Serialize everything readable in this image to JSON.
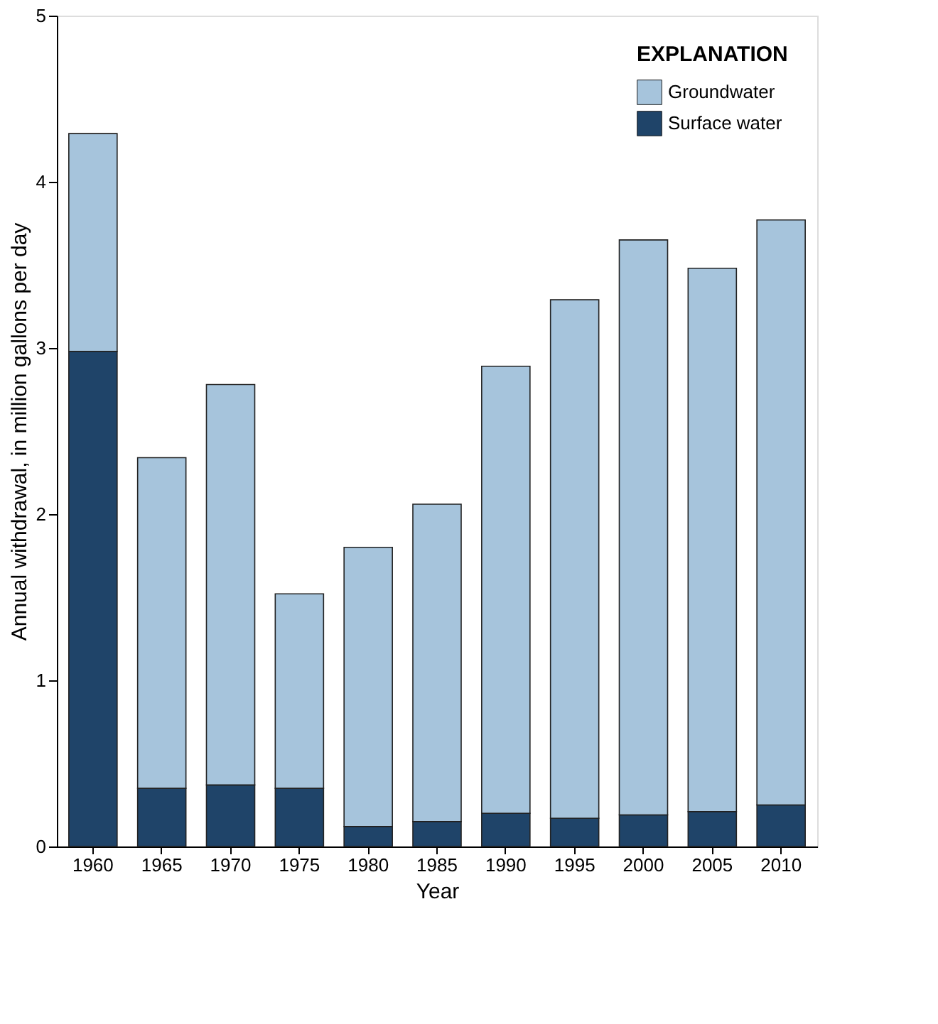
{
  "chart_data": {
    "type": "bar",
    "stacked": true,
    "xlabel": "Year",
    "ylabel": "Annual withdrawal, in million gallons per day",
    "legend_title": "EXPLANATION",
    "legend": "top right",
    "grid": false,
    "categories": [
      "1960",
      "1965",
      "1970",
      "1975",
      "1980",
      "1985",
      "1990",
      "1995",
      "2000",
      "2005",
      "2010"
    ],
    "series": [
      {
        "name": "Surface water",
        "color": "#1f4469",
        "values": [
          2.98,
          0.35,
          0.37,
          0.35,
          0.12,
          0.15,
          0.2,
          0.17,
          0.19,
          0.21,
          0.25
        ]
      },
      {
        "name": "Groundwater",
        "color": "#a6c4dc",
        "values": [
          1.31,
          1.99,
          2.41,
          1.17,
          1.68,
          1.91,
          2.69,
          3.12,
          3.46,
          3.27,
          3.52
        ]
      }
    ],
    "ylim": [
      0,
      5
    ],
    "yticks": [
      0,
      1,
      2,
      3,
      4,
      5
    ]
  }
}
